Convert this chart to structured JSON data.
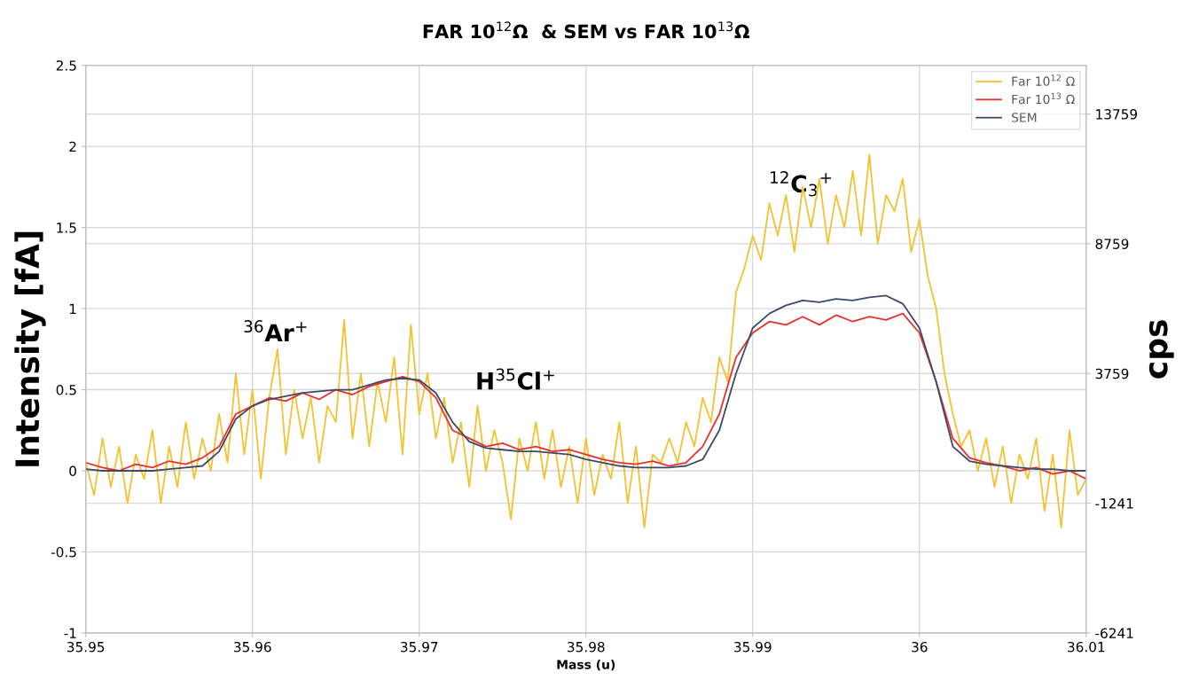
{
  "chart_data": {
    "type": "line",
    "title": "FAR 10$^{12}$Ω  & SEM vs FAR 10$^{13}$Ω",
    "xlabel": "Mass (u)",
    "ylabel": "Intensity [fA]",
    "y2label": "cps",
    "xlim": [
      35.95,
      36.01
    ],
    "xticks": [
      35.95,
      35.96,
      35.97,
      35.98,
      35.99,
      36,
      36.01
    ],
    "ylim": [
      -1,
      2.5
    ],
    "yticks": [
      -1,
      -0.5,
      0,
      0.5,
      1,
      1.5,
      2,
      2.5
    ],
    "y2lim": [
      -6241,
      15634
    ],
    "y2ticks": [
      -6241,
      -1241,
      3759,
      8759,
      13759
    ],
    "grid": true,
    "legend": "top right",
    "marker": "none",
    "line_style": "solid",
    "annotations": [
      "$^{36}$Ar$^{+}$",
      "H$^{35}$Cl$^{+}$",
      "$^{12}$C$_{3}$$^{+}$"
    ],
    "series": [
      {
        "name": "Far 10$^{12}$ Ω",
        "color": "#f2c230",
        "x": [
          35.95,
          35.9505,
          35.951,
          35.9515,
          35.952,
          35.9525,
          35.953,
          35.9535,
          35.954,
          35.9545,
          35.955,
          35.9555,
          35.956,
          35.9565,
          35.957,
          35.9575,
          35.958,
          35.9585,
          35.959,
          35.9595,
          35.96,
          35.9605,
          35.961,
          35.9615,
          35.962,
          35.9625,
          35.963,
          35.9635,
          35.964,
          35.9645,
          35.965,
          35.9655,
          35.966,
          35.9665,
          35.967,
          35.9675,
          35.968,
          35.9685,
          35.969,
          35.9695,
          35.97,
          35.9705,
          35.971,
          35.9715,
          35.972,
          35.9725,
          35.973,
          35.9735,
          35.974,
          35.9745,
          35.975,
          35.9755,
          35.976,
          35.9765,
          35.977,
          35.9775,
          35.978,
          35.9785,
          35.979,
          35.9795,
          35.98,
          35.9805,
          35.981,
          35.9815,
          35.982,
          35.9825,
          35.983,
          35.9835,
          35.984,
          35.9845,
          35.985,
          35.9855,
          35.986,
          35.9865,
          35.987,
          35.9875,
          35.988,
          35.9885,
          35.989,
          35.9895,
          35.99,
          35.9905,
          35.991,
          35.9915,
          35.992,
          35.9925,
          35.993,
          35.9935,
          35.994,
          35.9945,
          35.995,
          35.9955,
          35.996,
          35.9965,
          35.997,
          35.9975,
          35.998,
          35.9985,
          35.999,
          35.9995,
          36.0,
          36.0005,
          36.001,
          36.0015,
          36.002,
          36.0025,
          36.003,
          36.0035,
          36.004,
          36.0045,
          36.005,
          36.0055,
          36.006,
          36.0065,
          36.007,
          36.0075,
          36.008,
          36.0085,
          36.009,
          36.0095,
          36.01
        ],
        "values": [
          0.05,
          -0.15,
          0.2,
          -0.1,
          0.15,
          -0.2,
          0.1,
          -0.05,
          0.25,
          -0.2,
          0.15,
          -0.1,
          0.3,
          -0.05,
          0.2,
          0.0,
          0.35,
          0.05,
          0.6,
          0.1,
          0.5,
          -0.05,
          0.45,
          0.75,
          0.1,
          0.5,
          0.2,
          0.45,
          0.05,
          0.4,
          0.3,
          0.93,
          0.2,
          0.6,
          0.15,
          0.55,
          0.3,
          0.7,
          0.1,
          0.9,
          0.35,
          0.6,
          0.2,
          0.45,
          0.05,
          0.3,
          -0.1,
          0.4,
          0.0,
          0.25,
          0.05,
          -0.3,
          0.2,
          0.0,
          0.3,
          -0.05,
          0.25,
          -0.1,
          0.15,
          -0.2,
          0.2,
          -0.15,
          0.1,
          -0.05,
          0.3,
          -0.2,
          0.15,
          -0.35,
          0.1,
          0.05,
          0.2,
          0.05,
          0.3,
          0.15,
          0.45,
          0.3,
          0.7,
          0.55,
          1.1,
          1.25,
          1.45,
          1.3,
          1.65,
          1.45,
          1.7,
          1.35,
          1.75,
          1.5,
          1.8,
          1.4,
          1.7,
          1.5,
          1.85,
          1.45,
          1.95,
          1.4,
          1.7,
          1.6,
          1.8,
          1.35,
          1.55,
          1.2,
          1.0,
          0.6,
          0.35,
          0.15,
          0.25,
          0.0,
          0.2,
          -0.1,
          0.15,
          -0.2,
          0.1,
          -0.05,
          0.2,
          -0.25,
          0.1,
          -0.35,
          0.25,
          -0.15,
          -0.05
        ]
      },
      {
        "name": "Far 10$^{13}$ Ω",
        "color": "#e8312a",
        "x": [
          35.95,
          35.951,
          35.952,
          35.953,
          35.954,
          35.955,
          35.956,
          35.957,
          35.958,
          35.959,
          35.96,
          35.961,
          35.962,
          35.963,
          35.964,
          35.965,
          35.966,
          35.967,
          35.968,
          35.969,
          35.97,
          35.971,
          35.972,
          35.973,
          35.974,
          35.975,
          35.976,
          35.977,
          35.978,
          35.979,
          35.98,
          35.981,
          35.982,
          35.983,
          35.984,
          35.985,
          35.986,
          35.987,
          35.988,
          35.989,
          35.99,
          35.991,
          35.992,
          35.993,
          35.994,
          35.995,
          35.996,
          35.997,
          35.998,
          35.999,
          36.0,
          36.001,
          36.002,
          36.003,
          36.004,
          36.005,
          36.006,
          36.007,
          36.008,
          36.009,
          36.01
        ],
        "values": [
          0.05,
          0.02,
          0.0,
          0.04,
          0.02,
          0.06,
          0.04,
          0.08,
          0.15,
          0.35,
          0.4,
          0.45,
          0.43,
          0.48,
          0.44,
          0.5,
          0.47,
          0.52,
          0.55,
          0.58,
          0.55,
          0.45,
          0.25,
          0.2,
          0.15,
          0.17,
          0.13,
          0.15,
          0.12,
          0.13,
          0.1,
          0.07,
          0.05,
          0.04,
          0.06,
          0.03,
          0.05,
          0.15,
          0.35,
          0.7,
          0.85,
          0.92,
          0.9,
          0.95,
          0.9,
          0.96,
          0.92,
          0.95,
          0.93,
          0.97,
          0.85,
          0.55,
          0.2,
          0.08,
          0.05,
          0.03,
          0.0,
          0.02,
          -0.02,
          0.0,
          -0.05
        ]
      },
      {
        "name": "SEM",
        "color": "#3b4a6b",
        "x": [
          35.95,
          35.951,
          35.952,
          35.953,
          35.954,
          35.955,
          35.956,
          35.957,
          35.958,
          35.959,
          35.96,
          35.961,
          35.962,
          35.963,
          35.964,
          35.965,
          35.966,
          35.967,
          35.968,
          35.969,
          35.97,
          35.971,
          35.972,
          35.973,
          35.974,
          35.975,
          35.976,
          35.977,
          35.978,
          35.979,
          35.98,
          35.981,
          35.982,
          35.983,
          35.984,
          35.985,
          35.986,
          35.987,
          35.988,
          35.989,
          35.99,
          35.991,
          35.992,
          35.993,
          35.994,
          35.995,
          35.996,
          35.997,
          35.998,
          35.999,
          36.0,
          36.001,
          36.002,
          36.003,
          36.004,
          36.005,
          36.006,
          36.007,
          36.008,
          36.009,
          36.01
        ],
        "values": [
          0.01,
          0.0,
          0.0,
          0.0,
          0.0,
          0.01,
          0.02,
          0.03,
          0.12,
          0.32,
          0.4,
          0.44,
          0.46,
          0.48,
          0.49,
          0.5,
          0.5,
          0.53,
          0.56,
          0.57,
          0.56,
          0.48,
          0.3,
          0.18,
          0.14,
          0.13,
          0.12,
          0.12,
          0.11,
          0.1,
          0.07,
          0.05,
          0.03,
          0.02,
          0.02,
          0.02,
          0.03,
          0.07,
          0.25,
          0.6,
          0.88,
          0.97,
          1.02,
          1.05,
          1.04,
          1.06,
          1.05,
          1.07,
          1.08,
          1.03,
          0.88,
          0.55,
          0.15,
          0.06,
          0.04,
          0.03,
          0.02,
          0.01,
          0.01,
          0.0,
          0.0
        ]
      }
    ]
  }
}
